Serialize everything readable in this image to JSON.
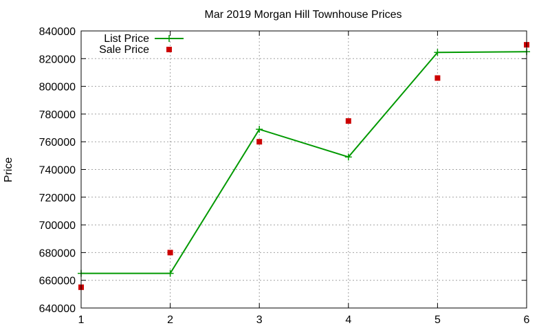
{
  "chart_data": {
    "type": "line",
    "title": "Mar 2019 Morgan Hill Townhouse Prices",
    "xlabel": "",
    "ylabel": "Price",
    "xlim": [
      1,
      6
    ],
    "ylim": [
      640000,
      840000
    ],
    "x_ticks": [
      1,
      2,
      3,
      4,
      5,
      6
    ],
    "y_ticks": [
      640000,
      660000,
      680000,
      700000,
      720000,
      740000,
      760000,
      780000,
      800000,
      820000,
      840000
    ],
    "grid": true,
    "legend_position": "top-left",
    "series": [
      {
        "name": "List Price",
        "style": "line-with-plus-markers",
        "color": "#009900",
        "x": [
          1,
          2,
          3,
          4,
          5,
          6
        ],
        "values": [
          665000,
          665000,
          769000,
          749000,
          824500,
          825000
        ]
      },
      {
        "name": "Sale Price",
        "style": "square-points",
        "color": "#cc0000",
        "x": [
          1,
          2,
          3,
          4,
          5,
          6
        ],
        "values": [
          655000,
          680000,
          760000,
          775000,
          806000,
          830000
        ]
      }
    ]
  }
}
